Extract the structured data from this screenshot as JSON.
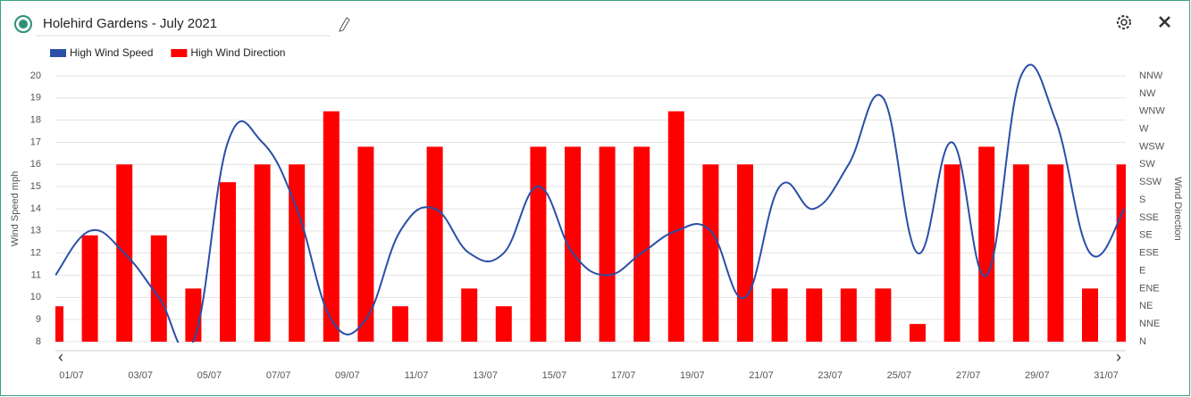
{
  "chart_data": {
    "type": "combo",
    "title": "Holehird Gardens - July 2021",
    "ylabel": "Wind Speed mph",
    "y2label": "Wind Direction",
    "categories": [
      "01/07",
      null,
      "03/07",
      null,
      "05/07",
      null,
      "07/07",
      null,
      "09/07",
      null,
      "11/07",
      null,
      "13/07",
      null,
      "15/07",
      null,
      "17/07",
      null,
      "19/07",
      null,
      "21/07",
      null,
      "23/07",
      null,
      "25/07",
      null,
      "27/07",
      null,
      "29/07",
      null,
      "31/07",
      null
    ],
    "series": [
      {
        "name": "High Wind Speed",
        "color": "#2a4fa8",
        "type": "line",
        "values": [
          11,
          13,
          12,
          10,
          8,
          17,
          17,
          14,
          9,
          9,
          13,
          14,
          12,
          12,
          15,
          12,
          11,
          12,
          13,
          13,
          10,
          15,
          14,
          16,
          19,
          12,
          17,
          11,
          20,
          18,
          12,
          14
        ]
      },
      {
        "name": "High Wind Direction",
        "color": "#ff0000",
        "type": "bar",
        "axis": "y2",
        "values": [
          2,
          6,
          10,
          6,
          3,
          9,
          10,
          10,
          13,
          11,
          2,
          11,
          3,
          2,
          11,
          11,
          11,
          11,
          13,
          10,
          10,
          3,
          3,
          3,
          3,
          1,
          10,
          11,
          10,
          10,
          3,
          10
        ]
      }
    ],
    "ylim": [
      8,
      20
    ],
    "yticks": [
      8,
      9,
      10,
      11,
      12,
      13,
      14,
      15,
      16,
      17,
      18,
      19,
      20
    ],
    "y2lim": [
      0,
      15
    ],
    "y2ticks": [
      {
        "value": 0,
        "label": "N"
      },
      {
        "value": 1,
        "label": "NNE"
      },
      {
        "value": 2,
        "label": "NE"
      },
      {
        "value": 3,
        "label": "ENE"
      },
      {
        "value": 4,
        "label": "E"
      },
      {
        "value": 5,
        "label": "ESE"
      },
      {
        "value": 6,
        "label": "SE"
      },
      {
        "value": 7,
        "label": "SSE"
      },
      {
        "value": 8,
        "label": "S"
      },
      {
        "value": 9,
        "label": "SSW"
      },
      {
        "value": 10,
        "label": "SW"
      },
      {
        "value": 11,
        "label": "WSW"
      },
      {
        "value": 12,
        "label": "W"
      },
      {
        "value": 13,
        "label": "WNW"
      },
      {
        "value": 14,
        "label": "NW"
      },
      {
        "value": 15,
        "label": "NNW"
      }
    ],
    "grid": true
  }
}
